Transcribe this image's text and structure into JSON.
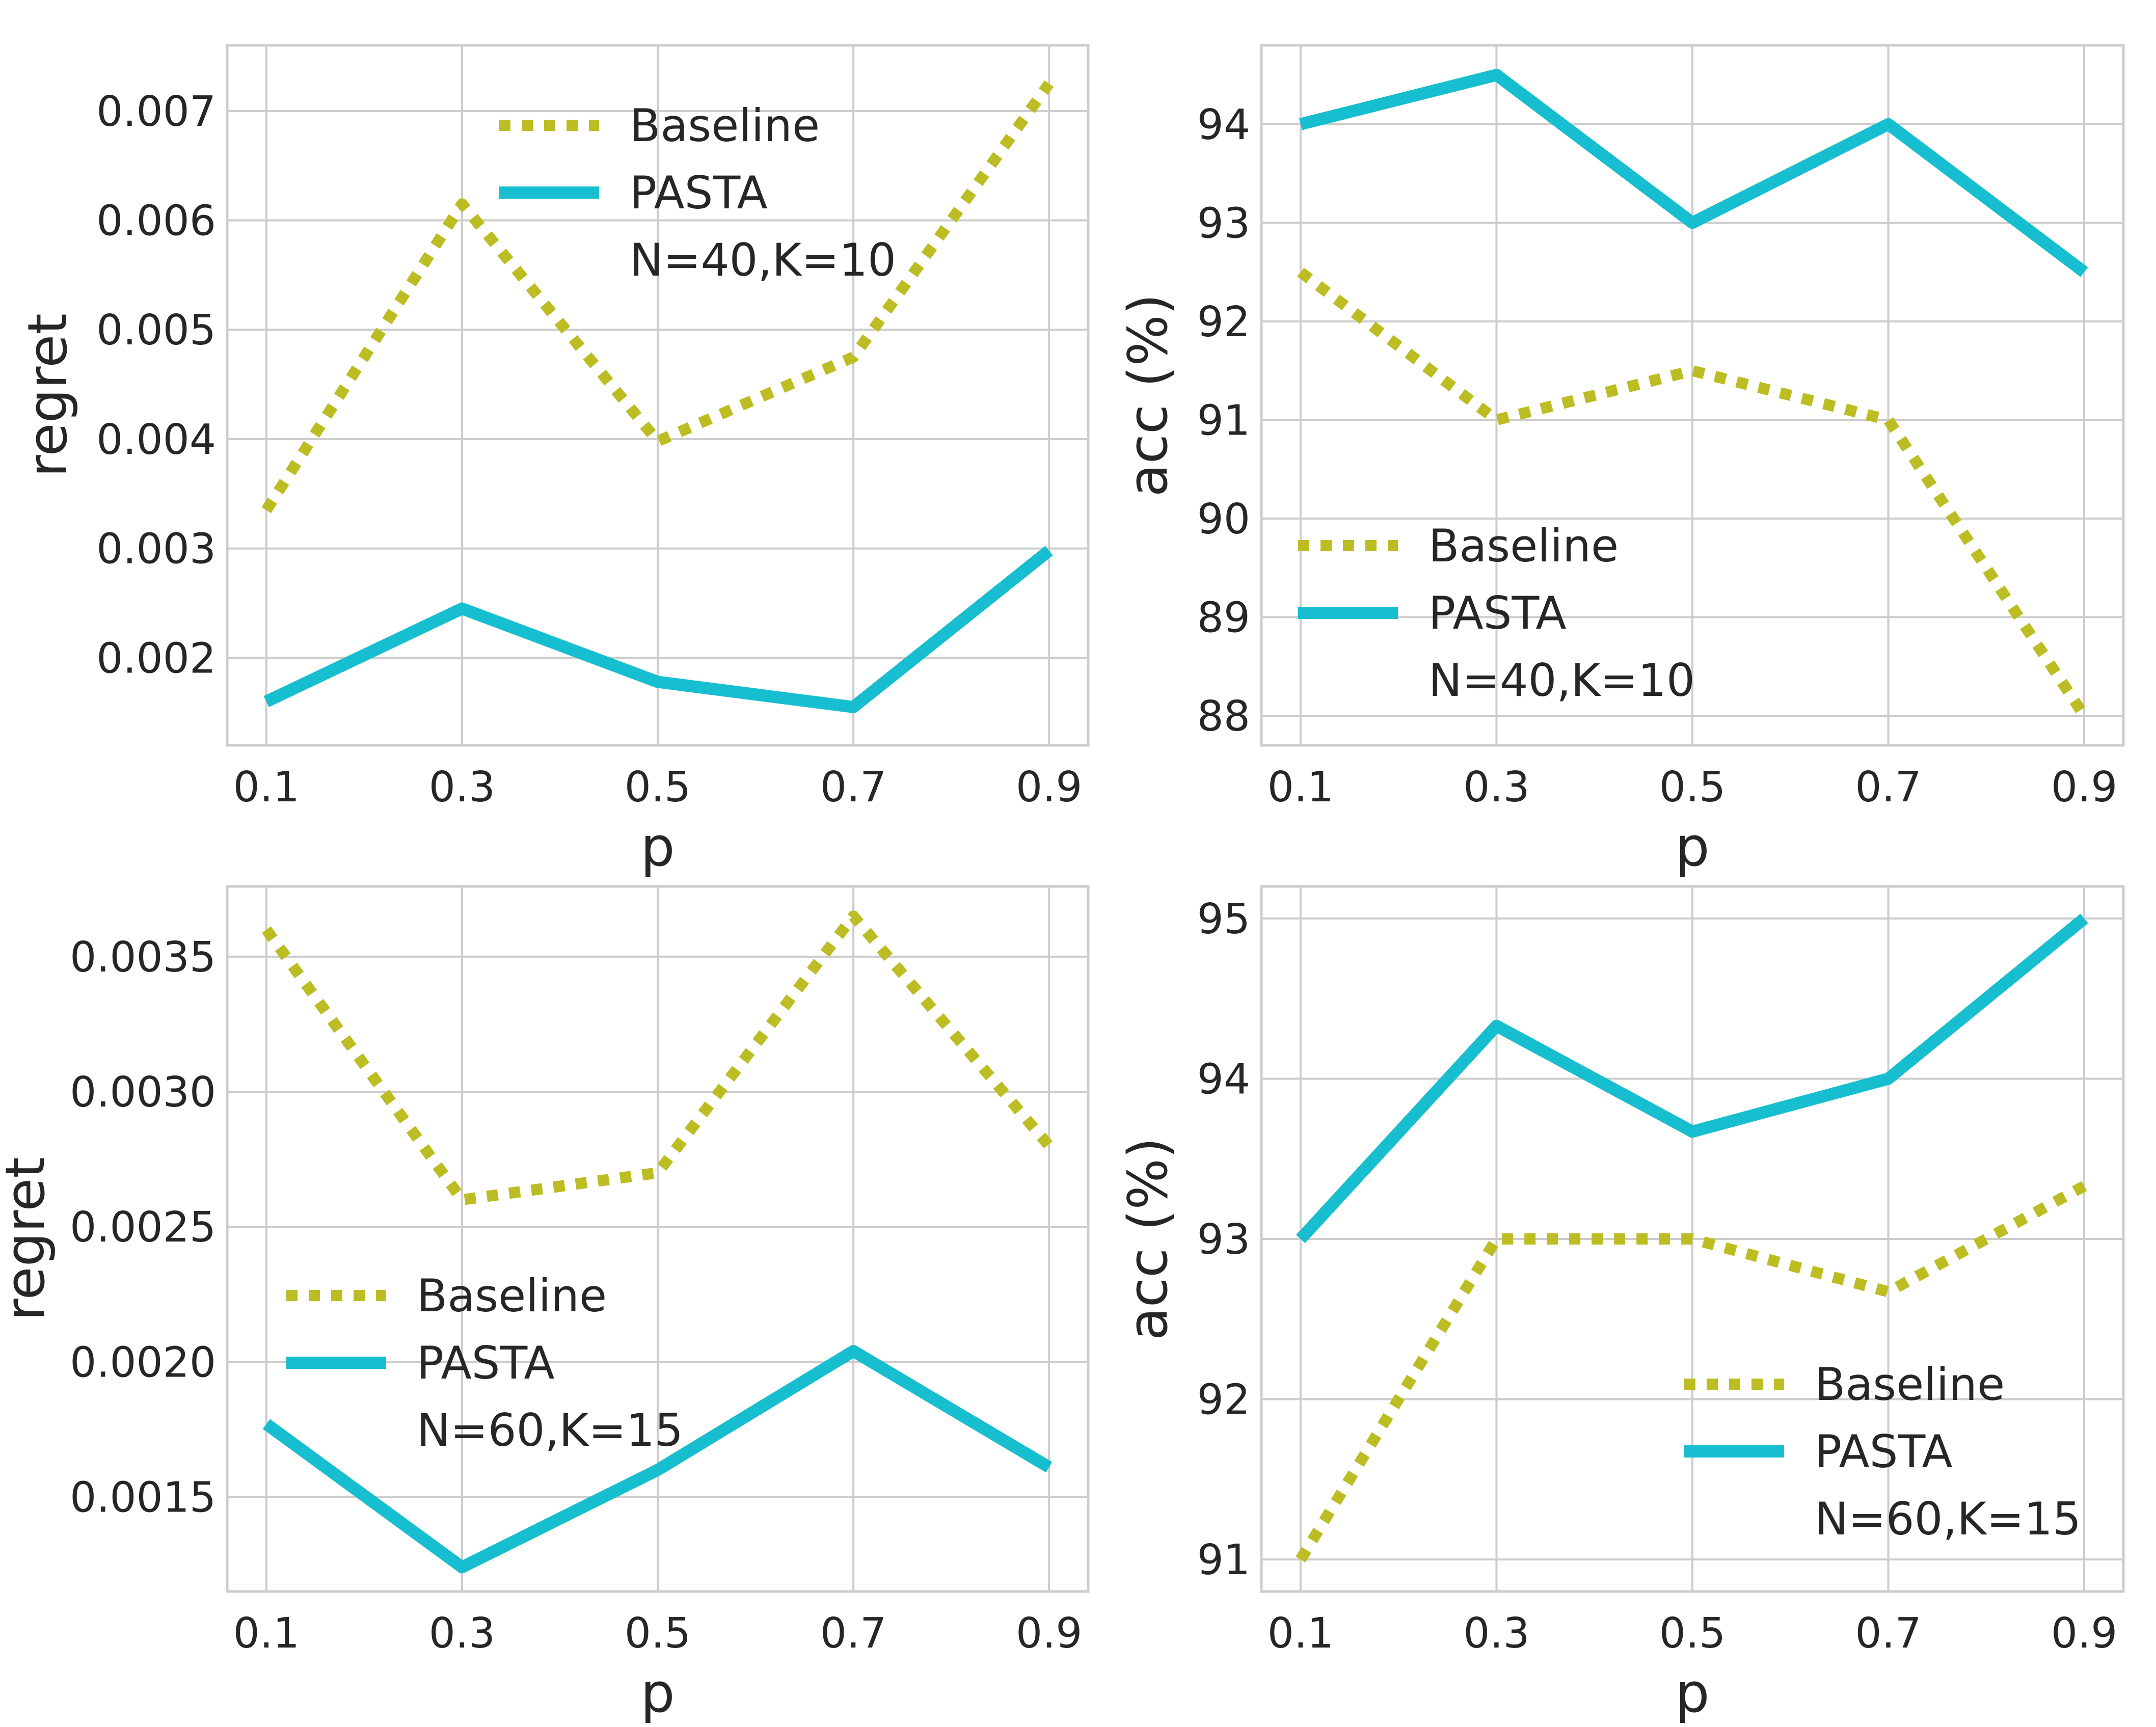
{
  "colors": {
    "baseline": "#bcbd22",
    "pasta": "#17becf",
    "grid": "#cccccc",
    "frame": "#cccccc",
    "text": "#262626",
    "background": "#ffffff"
  },
  "chart_data": [
    {
      "type": "line",
      "title": "",
      "xlabel": "p",
      "ylabel": "regret",
      "x": [
        0.1,
        0.3,
        0.5,
        0.7,
        0.9
      ],
      "x_tick_labels": [
        "0.1",
        "0.3",
        "0.5",
        "0.7",
        "0.9"
      ],
      "ylim": [
        0.0012,
        0.0076
      ],
      "y_ticks": [
        0.002,
        0.003,
        0.004,
        0.005,
        0.006,
        0.007
      ],
      "y_tick_labels": [
        "0.002",
        "0.003",
        "0.004",
        "0.005",
        "0.006",
        "0.007"
      ],
      "series": [
        {
          "name": "Baseline",
          "style": "dotted",
          "values": [
            0.00335,
            0.00615,
            0.00398,
            0.00475,
            0.00725
          ]
        },
        {
          "name": "PASTA",
          "style": "solid",
          "values": [
            0.0016,
            0.00245,
            0.00178,
            0.00155,
            0.00298
          ]
        }
      ],
      "legend": {
        "position": "top-center",
        "labels": [
          "Baseline",
          "PASTA"
        ],
        "note": "N=40,K=10"
      }
    },
    {
      "type": "line",
      "title": "",
      "xlabel": "p",
      "ylabel": "acc (%)",
      "x": [
        0.1,
        0.3,
        0.5,
        0.7,
        0.9
      ],
      "x_tick_labels": [
        "0.1",
        "0.3",
        "0.5",
        "0.7",
        "0.9"
      ],
      "ylim": [
        87.7,
        94.8
      ],
      "y_ticks": [
        88,
        89,
        90,
        91,
        92,
        93,
        94
      ],
      "y_tick_labels": [
        "88",
        "89",
        "90",
        "91",
        "92",
        "93",
        "94"
      ],
      "series": [
        {
          "name": "Baseline",
          "style": "dotted",
          "values": [
            92.5,
            91.0,
            91.5,
            91.0,
            88.0
          ]
        },
        {
          "name": "PASTA",
          "style": "solid",
          "values": [
            94.0,
            94.5,
            93.0,
            94.0,
            92.5
          ]
        }
      ],
      "legend": {
        "position": "lower-left",
        "labels": [
          "Baseline",
          "PASTA"
        ],
        "note": "N=40,K=10"
      }
    },
    {
      "type": "line",
      "title": "",
      "xlabel": "p",
      "ylabel": "regret",
      "x": [
        0.1,
        0.3,
        0.5,
        0.7,
        0.9
      ],
      "x_tick_labels": [
        "0.1",
        "0.3",
        "0.5",
        "0.7",
        "0.9"
      ],
      "ylim": [
        0.00115,
        0.00376
      ],
      "y_ticks": [
        0.0015,
        0.002,
        0.0025,
        0.003,
        0.0035
      ],
      "y_tick_labels": [
        "0.0015",
        "0.0020",
        "0.0025",
        "0.0030",
        "0.0035"
      ],
      "series": [
        {
          "name": "Baseline",
          "style": "dotted",
          "values": [
            0.0036,
            0.0026,
            0.0027,
            0.00365,
            0.0028
          ]
        },
        {
          "name": "PASTA",
          "style": "solid",
          "values": [
            0.00177,
            0.00124,
            0.0016,
            0.00204,
            0.00161
          ]
        }
      ],
      "legend": {
        "position": "lower-left",
        "labels": [
          "Baseline",
          "PASTA"
        ],
        "note": "N=60,K=15"
      }
    },
    {
      "type": "line",
      "title": "",
      "xlabel": "p",
      "ylabel": "acc (%)",
      "x": [
        0.1,
        0.3,
        0.5,
        0.7,
        0.9
      ],
      "x_tick_labels": [
        "0.1",
        "0.3",
        "0.5",
        "0.7",
        "0.9"
      ],
      "ylim": [
        90.8,
        95.2
      ],
      "y_ticks": [
        91,
        92,
        93,
        94,
        95
      ],
      "y_tick_labels": [
        "91",
        "92",
        "93",
        "94",
        "95"
      ],
      "series": [
        {
          "name": "Baseline",
          "style": "dotted",
          "values": [
            91.0,
            93.0,
            93.0,
            92.67,
            93.33
          ]
        },
        {
          "name": "PASTA",
          "style": "solid",
          "values": [
            93.0,
            94.33,
            93.67,
            94.0,
            95.0
          ]
        }
      ],
      "legend": {
        "position": "lower-right",
        "labels": [
          "Baseline",
          "PASTA"
        ],
        "note": "N=60,K=15"
      }
    }
  ]
}
